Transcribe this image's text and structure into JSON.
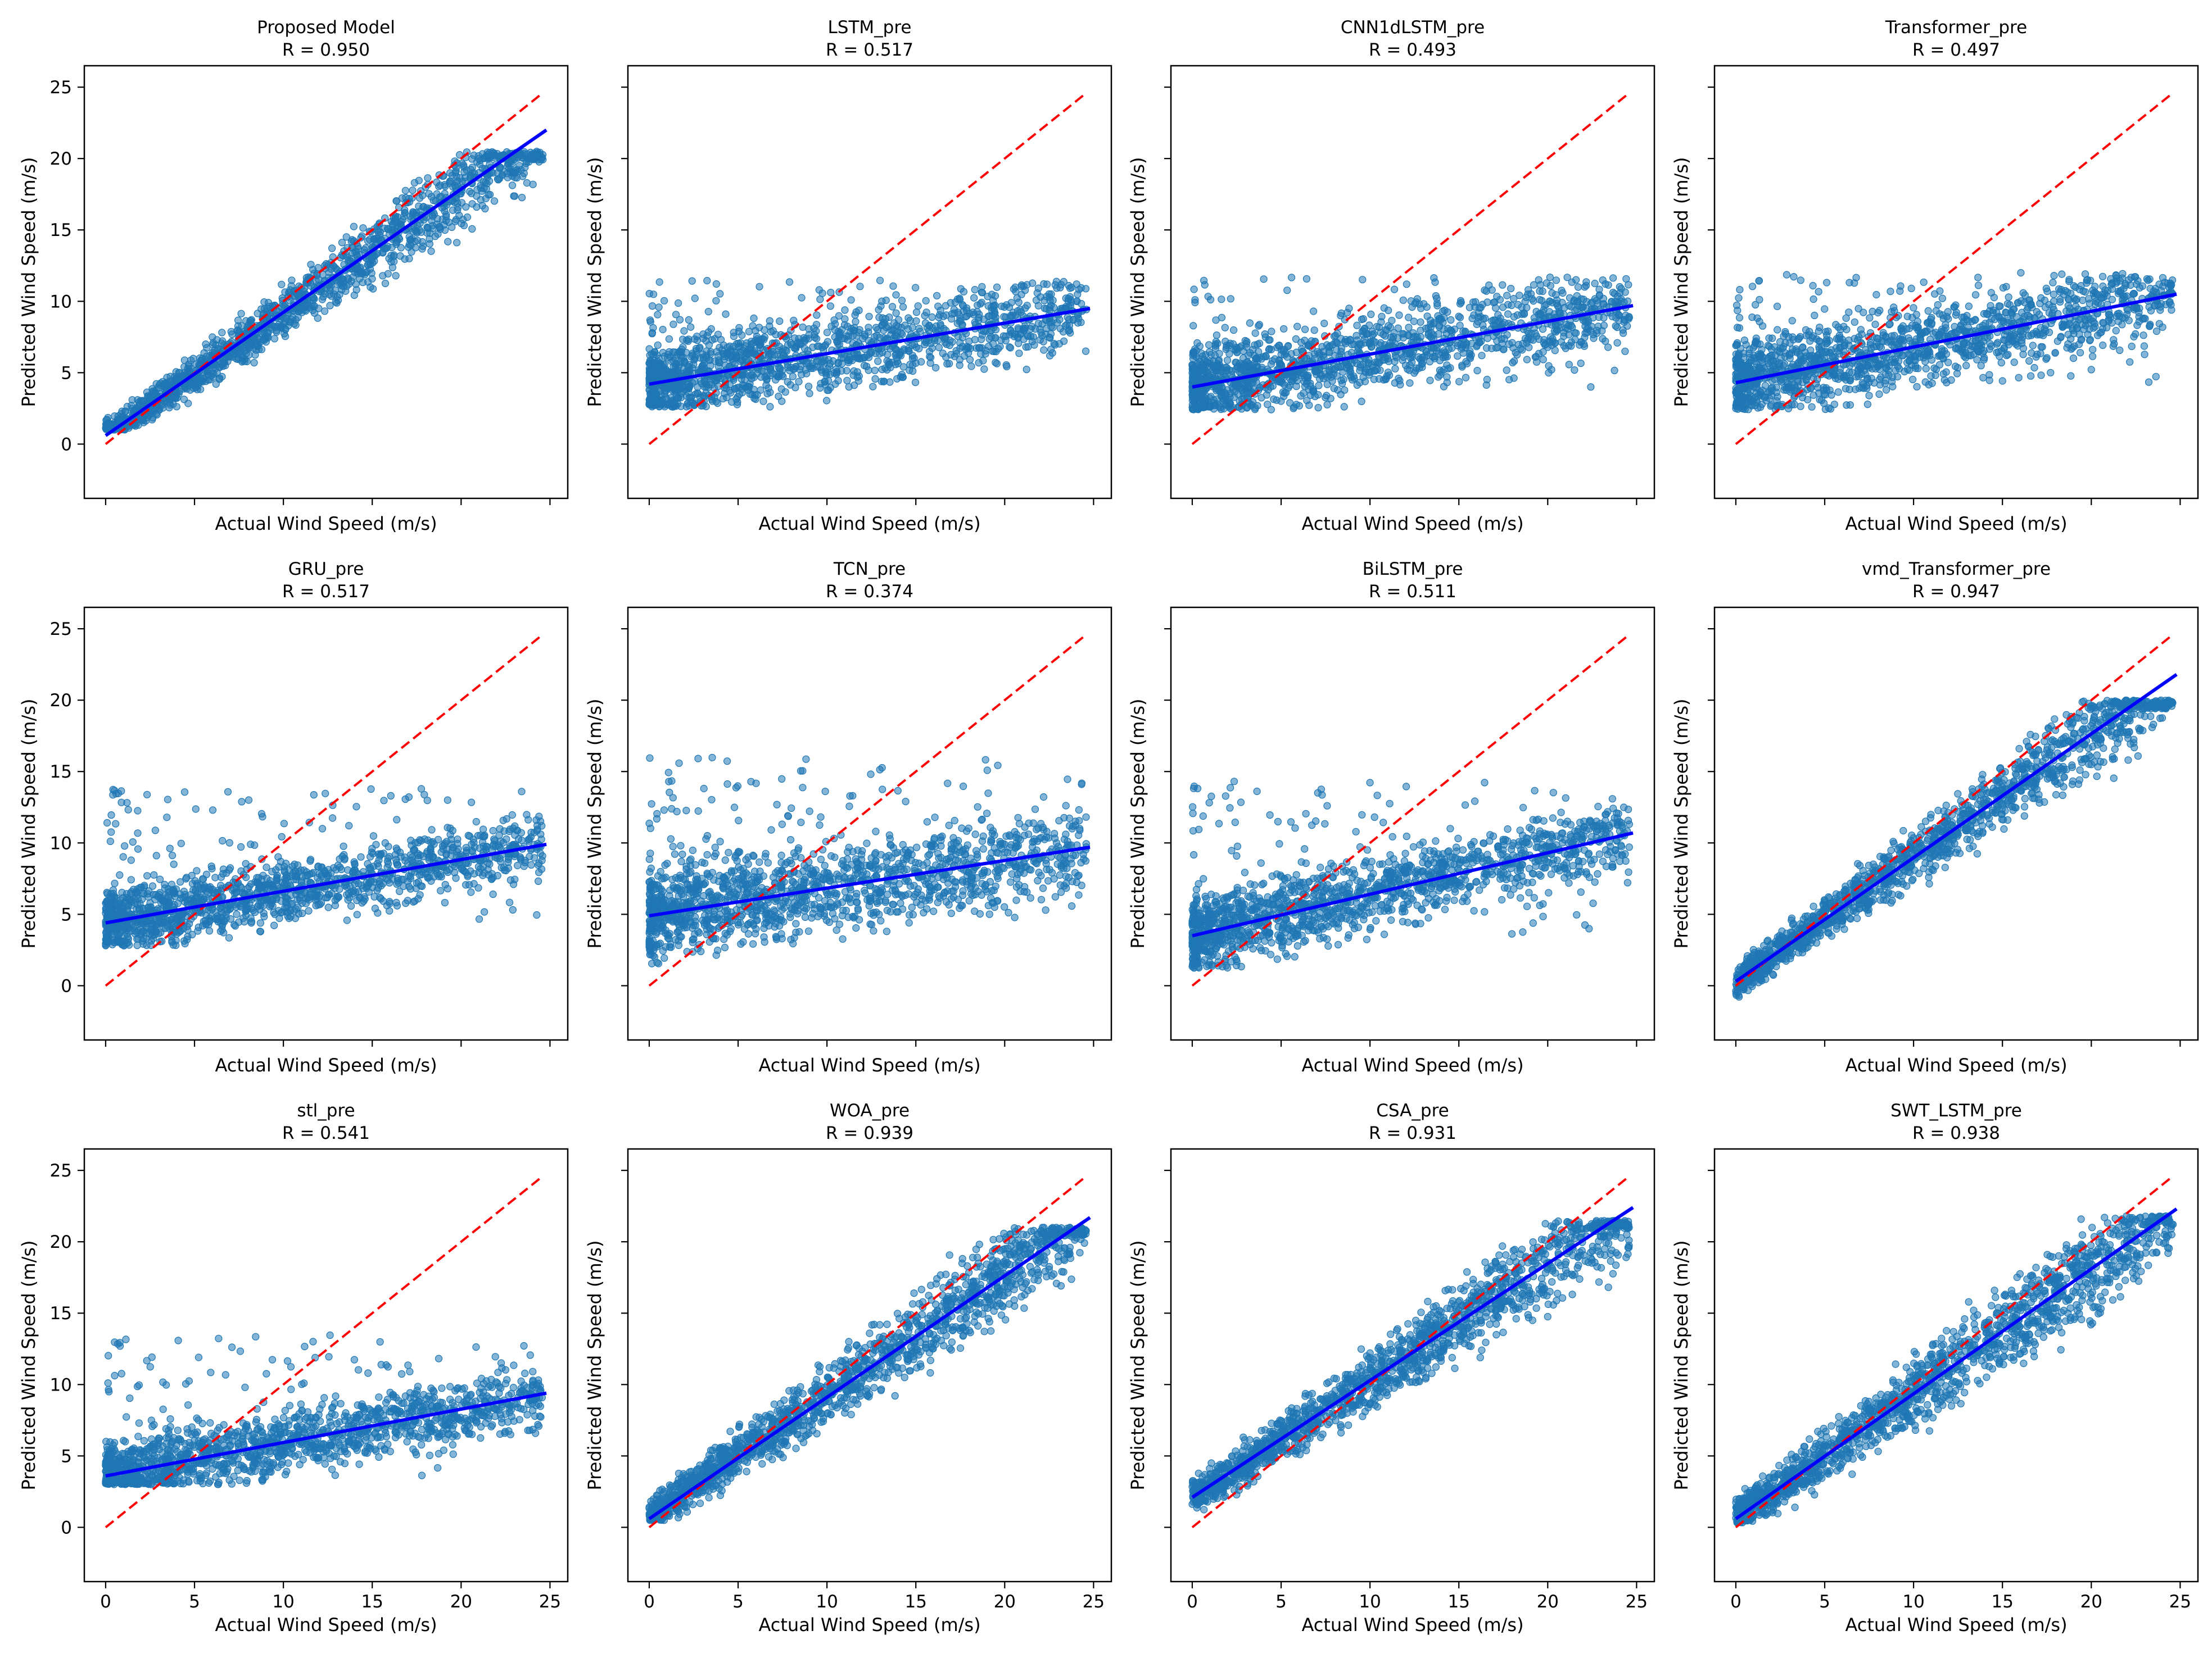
{
  "figure": {
    "xlabel": "Actual Wind Speed (m/s)",
    "ylabel": "Predicted Wind Speed (m/s)",
    "colors": {
      "points": "#1f77b4",
      "ideal_line": "#ff0000",
      "fit_line": "#0000ff"
    }
  },
  "chart_data": [
    {
      "type": "scatter",
      "title": "Proposed Model",
      "subtitle": "R = 0.950",
      "fit": {
        "x": [
          0,
          24.8
        ],
        "y": [
          0.6,
          22.0
        ]
      },
      "cloud": {
        "kind": "good",
        "slope": 0.86,
        "intercept": 0.6,
        "noise": 1.1,
        "ymin": 1.0,
        "ymax": 20.5
      }
    },
    {
      "type": "scatter",
      "title": "LSTM_pre",
      "subtitle": "R = 0.517",
      "fit": {
        "x": [
          0,
          24.8
        ],
        "y": [
          4.2,
          9.5
        ]
      },
      "cloud": {
        "kind": "flat",
        "slope": 0.21,
        "intercept": 4.2,
        "noise": 1.5,
        "ymin": 2.6,
        "ymax": 11.5
      }
    },
    {
      "type": "scatter",
      "title": "CNN1dLSTM_pre",
      "subtitle": "R = 0.493",
      "fit": {
        "x": [
          0,
          24.8
        ],
        "y": [
          4.0,
          9.7
        ]
      },
      "cloud": {
        "kind": "flat",
        "slope": 0.23,
        "intercept": 4.0,
        "noise": 1.6,
        "ymin": 2.4,
        "ymax": 11.7
      }
    },
    {
      "type": "scatter",
      "title": "Transformer_pre",
      "subtitle": "R = 0.497",
      "fit": {
        "x": [
          0,
          24.8
        ],
        "y": [
          4.3,
          10.5
        ]
      },
      "cloud": {
        "kind": "flat",
        "slope": 0.25,
        "intercept": 4.3,
        "noise": 1.6,
        "ymin": 2.4,
        "ymax": 12.0
      }
    },
    {
      "type": "scatter",
      "title": "GRU_pre",
      "subtitle": "R = 0.517",
      "fit": {
        "x": [
          0,
          24.8
        ],
        "y": [
          4.4,
          9.9
        ]
      },
      "cloud": {
        "kind": "flat",
        "slope": 0.22,
        "intercept": 4.4,
        "noise": 1.3,
        "ymin": 2.8,
        "ymax": 14.0
      }
    },
    {
      "type": "scatter",
      "title": "TCN_pre",
      "subtitle": "R = 0.374",
      "fit": {
        "x": [
          0,
          24.8
        ],
        "y": [
          4.9,
          9.7
        ]
      },
      "cloud": {
        "kind": "flat",
        "slope": 0.19,
        "intercept": 4.9,
        "noise": 1.8,
        "ymin": 0.8,
        "ymax": 16.0
      }
    },
    {
      "type": "scatter",
      "title": "BiLSTM_pre",
      "subtitle": "R = 0.511",
      "fit": {
        "x": [
          0,
          24.8
        ],
        "y": [
          3.5,
          10.7
        ]
      },
      "cloud": {
        "kind": "flat",
        "slope": 0.29,
        "intercept": 3.5,
        "noise": 1.5,
        "ymin": 1.2,
        "ymax": 14.5
      }
    },
    {
      "type": "scatter",
      "title": "vmd_Transformer_pre",
      "subtitle": "R = 0.947",
      "fit": {
        "x": [
          0,
          24.8
        ],
        "y": [
          0.3,
          21.8
        ]
      },
      "cloud": {
        "kind": "good",
        "slope": 0.87,
        "intercept": 0.3,
        "noise": 1.2,
        "ymin": -2.6,
        "ymax": 20.0
      }
    },
    {
      "type": "scatter",
      "title": "stl_pre",
      "subtitle": "R = 0.541",
      "fit": {
        "x": [
          0,
          24.8
        ],
        "y": [
          3.6,
          9.4
        ]
      },
      "cloud": {
        "kind": "flat",
        "slope": 0.23,
        "intercept": 3.6,
        "noise": 1.3,
        "ymin": 3.0,
        "ymax": 13.5
      }
    },
    {
      "type": "scatter",
      "title": "WOA_pre",
      "subtitle": "R = 0.939",
      "fit": {
        "x": [
          0,
          24.8
        ],
        "y": [
          0.6,
          21.7
        ]
      },
      "cloud": {
        "kind": "good",
        "slope": 0.85,
        "intercept": 0.8,
        "noise": 1.3,
        "ymin": 0.5,
        "ymax": 21.0
      }
    },
    {
      "type": "scatter",
      "title": "CSA_pre",
      "subtitle": "R = 0.931",
      "fit": {
        "x": [
          0,
          24.8
        ],
        "y": [
          2.1,
          22.4
        ]
      },
      "cloud": {
        "kind": "good",
        "slope": 0.82,
        "intercept": 2.1,
        "noise": 1.3,
        "ymin": 1.0,
        "ymax": 21.5
      }
    },
    {
      "type": "scatter",
      "title": "SWT_LSTM_pre",
      "subtitle": "R = 0.938",
      "fit": {
        "x": [
          0,
          24.8
        ],
        "y": [
          0.6,
          22.3
        ]
      },
      "cloud": {
        "kind": "good",
        "slope": 0.87,
        "intercept": 0.7,
        "noise": 1.4,
        "ymin": 0.3,
        "ymax": 21.8
      }
    }
  ],
  "axes": {
    "xlim": [
      -1.2,
      26.0
    ],
    "ylim": [
      -3.8,
      26.5
    ],
    "xticks": [
      0,
      5,
      10,
      15,
      20,
      25
    ],
    "yticks": [
      0,
      5,
      10,
      15,
      20,
      25
    ],
    "ideal_range": [
      0,
      24.6
    ],
    "grid": false
  }
}
